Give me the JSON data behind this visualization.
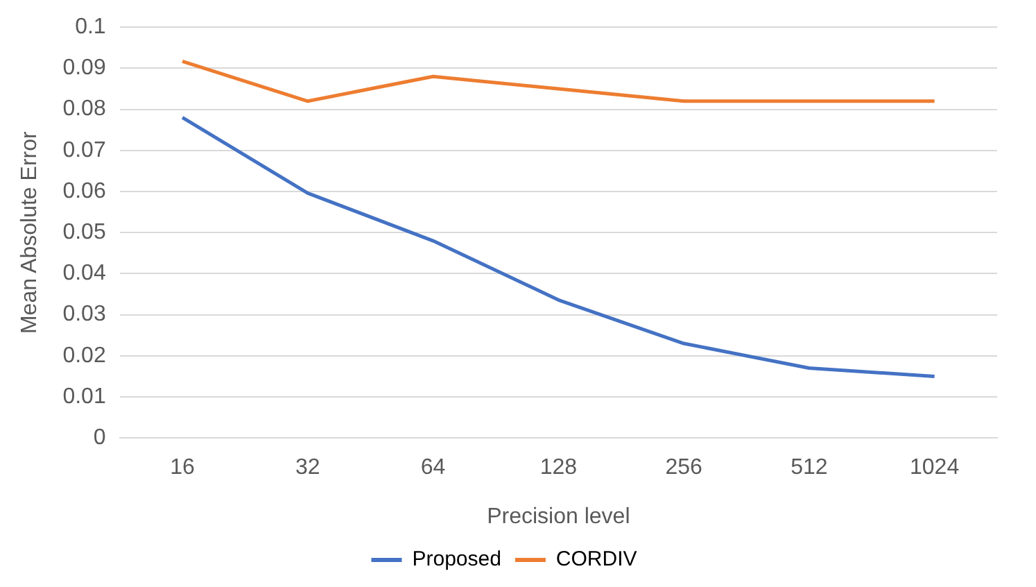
{
  "chart_data": {
    "type": "line",
    "xlabel": "Precision level",
    "ylabel": "Mean Absolute Error",
    "categories": [
      "16",
      "32",
      "64",
      "128",
      "256",
      "512",
      "1024"
    ],
    "series": [
      {
        "name": "Proposed",
        "color": "#4472c4",
        "values": [
          0.078,
          0.0596,
          0.048,
          0.0336,
          0.023,
          0.017,
          0.015
        ]
      },
      {
        "name": "CORDIV",
        "color": "#ed7d31",
        "values": [
          0.0917,
          0.082,
          0.088,
          0.085,
          0.082,
          0.082,
          0.082
        ]
      }
    ],
    "ylim": [
      0,
      0.1
    ],
    "yticks": [
      0,
      0.01,
      0.02,
      0.03,
      0.04,
      0.05,
      0.06,
      0.07,
      0.08,
      0.09,
      0.1
    ],
    "grid": "y",
    "legend": "bottom",
    "marker": "none",
    "line_style": "solid"
  }
}
